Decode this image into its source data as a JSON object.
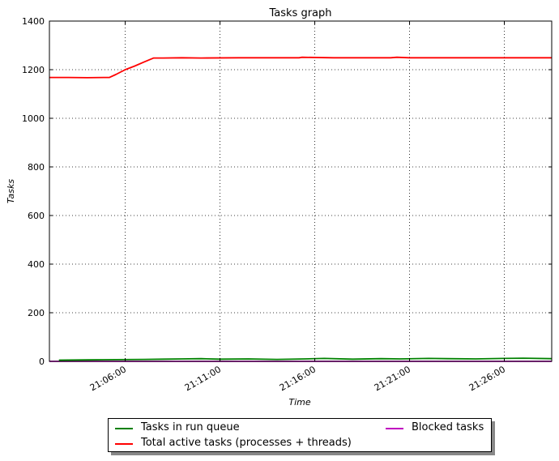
{
  "chart_data": {
    "type": "line",
    "title": "Tasks graph",
    "xlabel": "Time",
    "ylabel": "Tasks",
    "ylim": [
      0,
      1400
    ],
    "xlim": [
      "21:02:00",
      "21:28:30"
    ],
    "y_ticks": [
      "0",
      "200",
      "400",
      "600",
      "800",
      "1000",
      "1200",
      "1400"
    ],
    "x_ticks": [
      "21:06:00",
      "21:11:00",
      "21:16:00",
      "21:21:00",
      "21:26:00"
    ],
    "grid": true,
    "legend_position": "below",
    "series": [
      {
        "name": "Tasks in run queue",
        "color": "#008000",
        "x": [
          "21:02:30",
          "21:04:00",
          "21:05:30",
          "21:07:00",
          "21:08:00",
          "21:09:00",
          "21:10:00",
          "21:11:00",
          "21:12:30",
          "21:14:00",
          "21:15:30",
          "21:16:30",
          "21:18:00",
          "21:19:30",
          "21:20:30",
          "21:22:00",
          "21:23:00",
          "21:24:30",
          "21:26:00",
          "21:27:00",
          "21:28:30"
        ],
        "values": [
          5,
          6,
          7,
          8,
          9,
          10,
          11,
          9,
          10,
          8,
          10,
          12,
          9,
          11,
          10,
          12,
          11,
          10,
          12,
          13,
          11
        ]
      },
      {
        "name": "Total active tasks (processes + threads)",
        "color": "#ff0000",
        "x": [
          "21:02:00",
          "21:03:00",
          "21:04:00",
          "21:05:00",
          "21:05:10",
          "21:05:30",
          "21:06:00",
          "21:06:30",
          "21:07:00",
          "21:07:30",
          "21:08:00",
          "21:09:00",
          "21:10:00",
          "21:12:00",
          "21:14:00",
          "21:15:10",
          "21:15:20",
          "21:17:00",
          "21:19:00",
          "21:20:00",
          "21:20:20",
          "21:21:00",
          "21:23:00",
          "21:25:00",
          "21:28:30"
        ],
        "values": [
          1168,
          1168,
          1167,
          1168,
          1168,
          1180,
          1200,
          1215,
          1232,
          1248,
          1248,
          1249,
          1248,
          1249,
          1249,
          1249,
          1251,
          1249,
          1249,
          1249,
          1251,
          1249,
          1249,
          1249,
          1249
        ]
      },
      {
        "name": "Blocked tasks",
        "color": "#bf00bf",
        "x": [
          "21:02:00",
          "21:28:30"
        ],
        "values": [
          0,
          0
        ]
      }
    ]
  }
}
